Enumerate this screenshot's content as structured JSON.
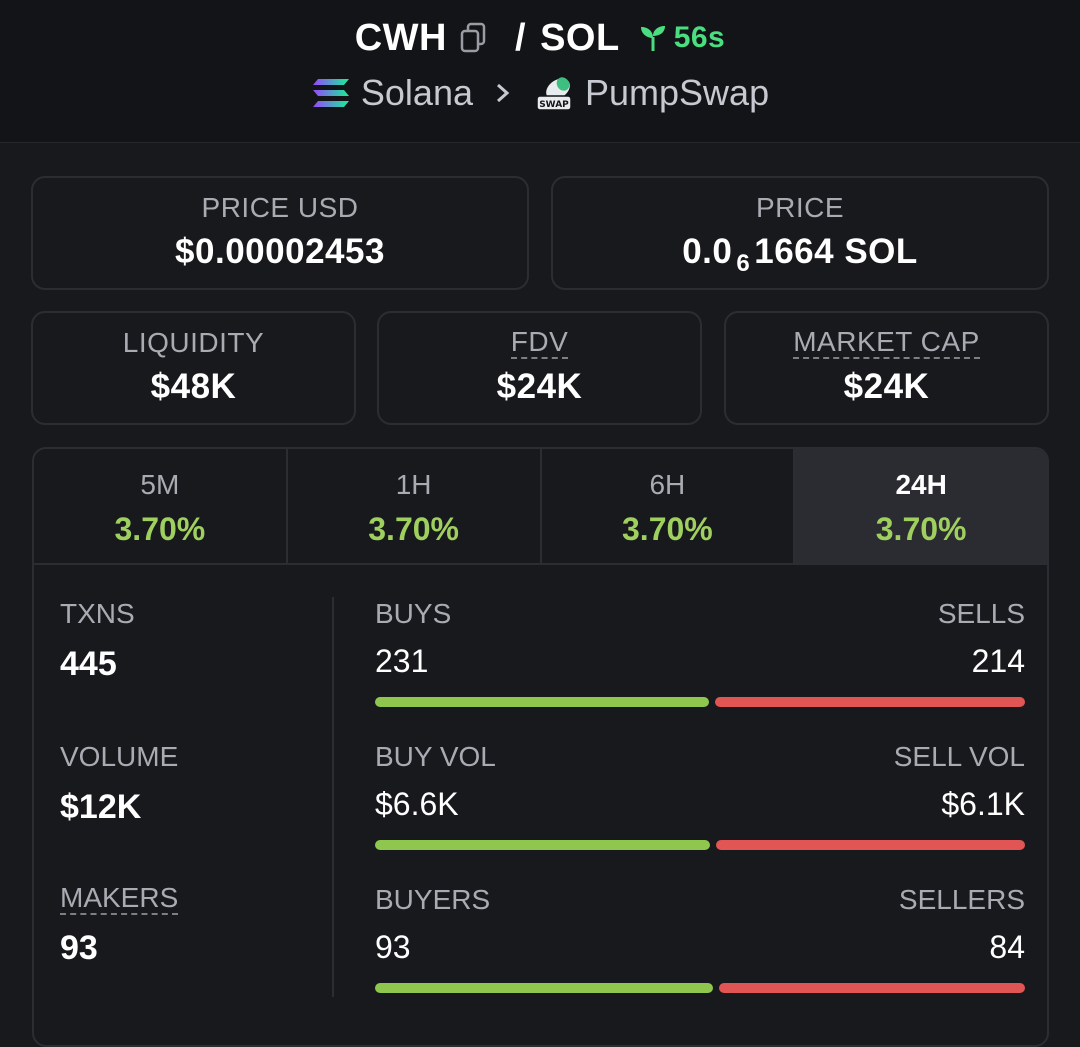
{
  "header": {
    "base_token": "CWH",
    "quote_token": "SOL",
    "separator": "/",
    "age": "56s",
    "chain": "Solana",
    "dex": "PumpSwap",
    "dex_logo_text": "SWAP"
  },
  "price_usd": {
    "label": "PRICE USD",
    "value": "$0.00002453"
  },
  "price_native": {
    "label": "PRICE",
    "prefix": "0.0",
    "zeros": "6",
    "digits": "1664 SOL"
  },
  "metrics": {
    "liquidity": {
      "label": "LIQUIDITY",
      "value": "$48K"
    },
    "fdv": {
      "label": "FDV",
      "value": "$24K"
    },
    "market_cap": {
      "label": "MARKET CAP",
      "value": "$24K"
    }
  },
  "tabs": [
    {
      "label": "5M",
      "change": "3.70%"
    },
    {
      "label": "1H",
      "change": "3.70%"
    },
    {
      "label": "6H",
      "change": "3.70%"
    },
    {
      "label": "24H",
      "change": "3.70%"
    }
  ],
  "active_tab": "24H",
  "stats": {
    "txns": {
      "label": "TXNS",
      "value": "445"
    },
    "volume": {
      "label": "VOLUME",
      "value": "$12K"
    },
    "makers": {
      "label": "MAKERS",
      "value": "93"
    }
  },
  "splits": {
    "txns": {
      "left_label": "BUYS",
      "left_value": "231",
      "right_label": "SELLS",
      "right_value": "214",
      "buy_fraction": 0.519
    },
    "volume": {
      "left_label": "BUY VOL",
      "left_value": "$6.6K",
      "right_label": "SELL VOL",
      "right_value": "$6.1K",
      "buy_fraction": 0.52
    },
    "makers": {
      "left_label": "BUYERS",
      "left_value": "93",
      "right_label": "SELLERS",
      "right_value": "84",
      "buy_fraction": 0.525
    }
  },
  "colors": {
    "positive": "#9fcf5f",
    "buy_bar": "#8fc64e",
    "sell_bar": "#e25555",
    "age": "#4ade80"
  }
}
